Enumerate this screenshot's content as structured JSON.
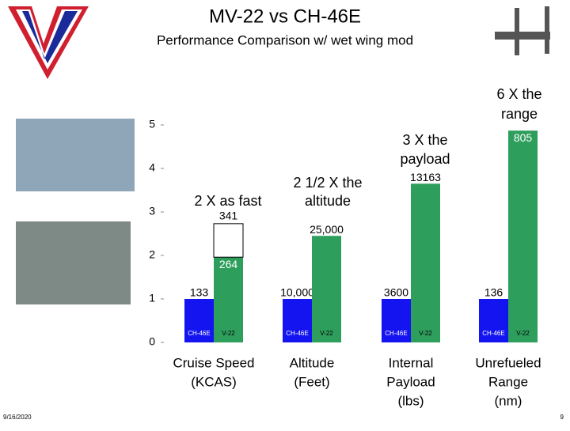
{
  "header": {
    "title": "MV-22 vs CH-46E",
    "subtitle": "Performance Comparison w/ wet wing mod"
  },
  "chart_data": {
    "type": "bar",
    "categories": [
      [
        "Cruise Speed",
        "(KCAS)"
      ],
      [
        "Altitude",
        "(Feet)"
      ],
      [
        "Internal",
        "Payload",
        "(lbs)"
      ],
      [
        "Unrefueled",
        "Range",
        "(nm)"
      ]
    ],
    "series": [
      {
        "name": "CH-46E",
        "color": "#1414f0",
        "values": [
          1,
          1,
          1,
          1
        ],
        "value_labels": [
          "133",
          "10,000",
          "3600",
          "136"
        ]
      },
      {
        "name": "V-22",
        "color": "#2e9e5c",
        "values": [
          1.96,
          2.45,
          3.65,
          4.87
        ],
        "value_labels": [
          "264",
          "25,000",
          "13163",
          "805"
        ]
      }
    ],
    "stack_segment": {
      "category": 0,
      "color": "#ffffff",
      "value": 0.77,
      "label": "341"
    },
    "annotations": [
      [
        "2 X as fast"
      ],
      [
        "2 1/2 X the",
        "altitude"
      ],
      [
        "3 X the",
        "payload"
      ],
      [
        "6 X the",
        "range"
      ]
    ],
    "ylim": [
      0,
      5
    ],
    "yticks": [
      0,
      1,
      2,
      3,
      4,
      5
    ]
  },
  "footer": {
    "date": "9/16/2020",
    "page": "9"
  }
}
